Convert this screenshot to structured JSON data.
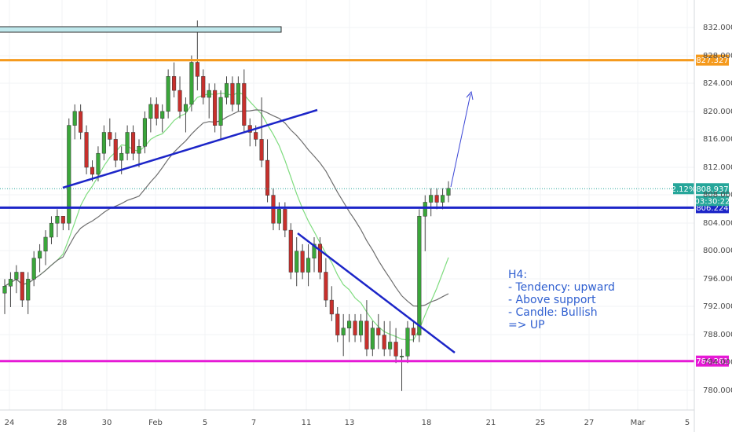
{
  "chart_data": {
    "type": "candlestick",
    "timeframe": "H4",
    "y_axis": {
      "range": [
        778.0,
        834.0
      ],
      "ticks": [
        "832.000",
        "828.000",
        "824.000",
        "820.000",
        "816.000",
        "812.000",
        "808.000",
        "804.000",
        "800.000",
        "796.000",
        "792.000",
        "788.000",
        "784.000",
        "780.000"
      ]
    },
    "x_axis": {
      "ticks": [
        "24",
        "28",
        "30",
        "Feb",
        "5",
        "7",
        "11",
        "13",
        "18",
        "21",
        "25",
        "27",
        "Mar",
        "5"
      ]
    },
    "horizontal_levels": [
      {
        "price": 827.327,
        "label": "827.327",
        "color": "#f59a1d"
      },
      {
        "price": 806.224,
        "label": "806.224",
        "color": "#1c25c8"
      },
      {
        "price": 784.281,
        "label": "784.281",
        "color": "#e619d6"
      }
    ],
    "last_price": {
      "value": "808.937",
      "change": "2.12%",
      "countdown": "03:30:22",
      "color": "#26a69a"
    },
    "annotation": {
      "lines": [
        "H4:",
        "- Tendency: upward",
        "- Above support",
        "- Candle: Bullish",
        "=> UP"
      ]
    },
    "candles": [
      [
        794,
        796,
        791,
        795
      ],
      [
        795,
        797,
        792,
        796
      ],
      [
        796,
        798,
        794,
        797
      ],
      [
        797,
        797,
        792,
        793
      ],
      [
        793,
        797,
        791,
        796
      ],
      [
        796,
        800,
        795,
        799
      ],
      [
        799,
        801,
        797,
        800
      ],
      [
        800,
        803,
        798,
        802
      ],
      [
        802,
        805,
        801,
        804
      ],
      [
        804,
        806,
        802,
        805
      ],
      [
        805,
        805,
        803,
        804
      ],
      [
        804,
        819,
        803,
        818
      ],
      [
        818,
        821,
        816,
        820
      ],
      [
        820,
        821,
        816,
        817
      ],
      [
        817,
        818,
        811,
        812
      ],
      [
        812,
        813,
        810,
        811
      ],
      [
        811,
        815,
        810,
        814
      ],
      [
        814,
        818,
        813,
        817
      ],
      [
        817,
        819,
        815,
        816
      ],
      [
        816,
        817,
        812,
        813
      ],
      [
        813,
        815,
        811,
        814
      ],
      [
        814,
        818,
        813,
        817
      ],
      [
        817,
        818,
        813,
        814
      ],
      [
        814,
        816,
        812,
        815
      ],
      [
        815,
        820,
        814,
        819
      ],
      [
        819,
        822,
        817,
        821
      ],
      [
        821,
        822,
        818,
        819
      ],
      [
        819,
        821,
        817,
        820
      ],
      [
        820,
        826,
        819,
        825
      ],
      [
        825,
        827,
        822,
        823
      ],
      [
        823,
        825,
        819,
        820
      ],
      [
        820,
        822,
        817,
        821
      ],
      [
        821,
        828,
        820,
        827
      ],
      [
        827,
        833,
        823,
        825
      ],
      [
        825,
        826,
        821,
        822
      ],
      [
        822,
        824,
        819,
        823
      ],
      [
        823,
        824,
        817,
        818
      ],
      [
        818,
        823,
        816,
        822
      ],
      [
        822,
        825,
        821,
        824
      ],
      [
        824,
        825,
        820,
        821
      ],
      [
        821,
        825,
        820,
        824
      ],
      [
        824,
        826,
        817,
        818
      ],
      [
        818,
        819,
        815,
        817
      ],
      [
        817,
        818,
        815,
        816
      ],
      [
        816,
        822,
        812,
        813
      ],
      [
        813,
        816,
        807,
        808
      ],
      [
        808,
        809,
        803,
        804
      ],
      [
        804,
        807,
        803,
        806
      ],
      [
        806,
        807,
        802,
        803
      ],
      [
        803,
        804,
        796,
        797
      ],
      [
        797,
        802,
        795,
        800
      ],
      [
        800,
        801,
        796,
        797
      ],
      [
        797,
        801,
        795,
        799
      ],
      [
        799,
        802,
        797,
        801
      ],
      [
        801,
        802,
        796,
        797
      ],
      [
        797,
        799,
        792,
        793
      ],
      [
        793,
        795,
        790,
        791
      ],
      [
        791,
        792,
        787,
        788
      ],
      [
        788,
        791,
        785,
        789
      ],
      [
        789,
        791,
        787,
        790
      ],
      [
        790,
        791,
        787,
        788
      ],
      [
        788,
        791,
        787,
        790
      ],
      [
        790,
        793,
        785,
        786
      ],
      [
        786,
        790,
        785,
        789
      ],
      [
        789,
        791,
        786,
        788
      ],
      [
        788,
        790,
        785,
        786
      ],
      [
        786,
        790,
        785,
        787
      ],
      [
        787,
        789,
        784,
        785
      ],
      [
        785,
        786,
        780,
        785
      ],
      [
        785,
        790,
        784,
        789
      ],
      [
        789,
        790,
        787,
        788
      ],
      [
        788,
        806,
        787,
        805
      ],
      [
        805,
        808,
        800,
        807
      ],
      [
        807,
        809,
        805,
        808
      ],
      [
        808,
        809,
        806,
        807
      ],
      [
        807,
        809,
        806,
        808
      ],
      [
        808,
        810,
        807,
        809
      ]
    ]
  }
}
